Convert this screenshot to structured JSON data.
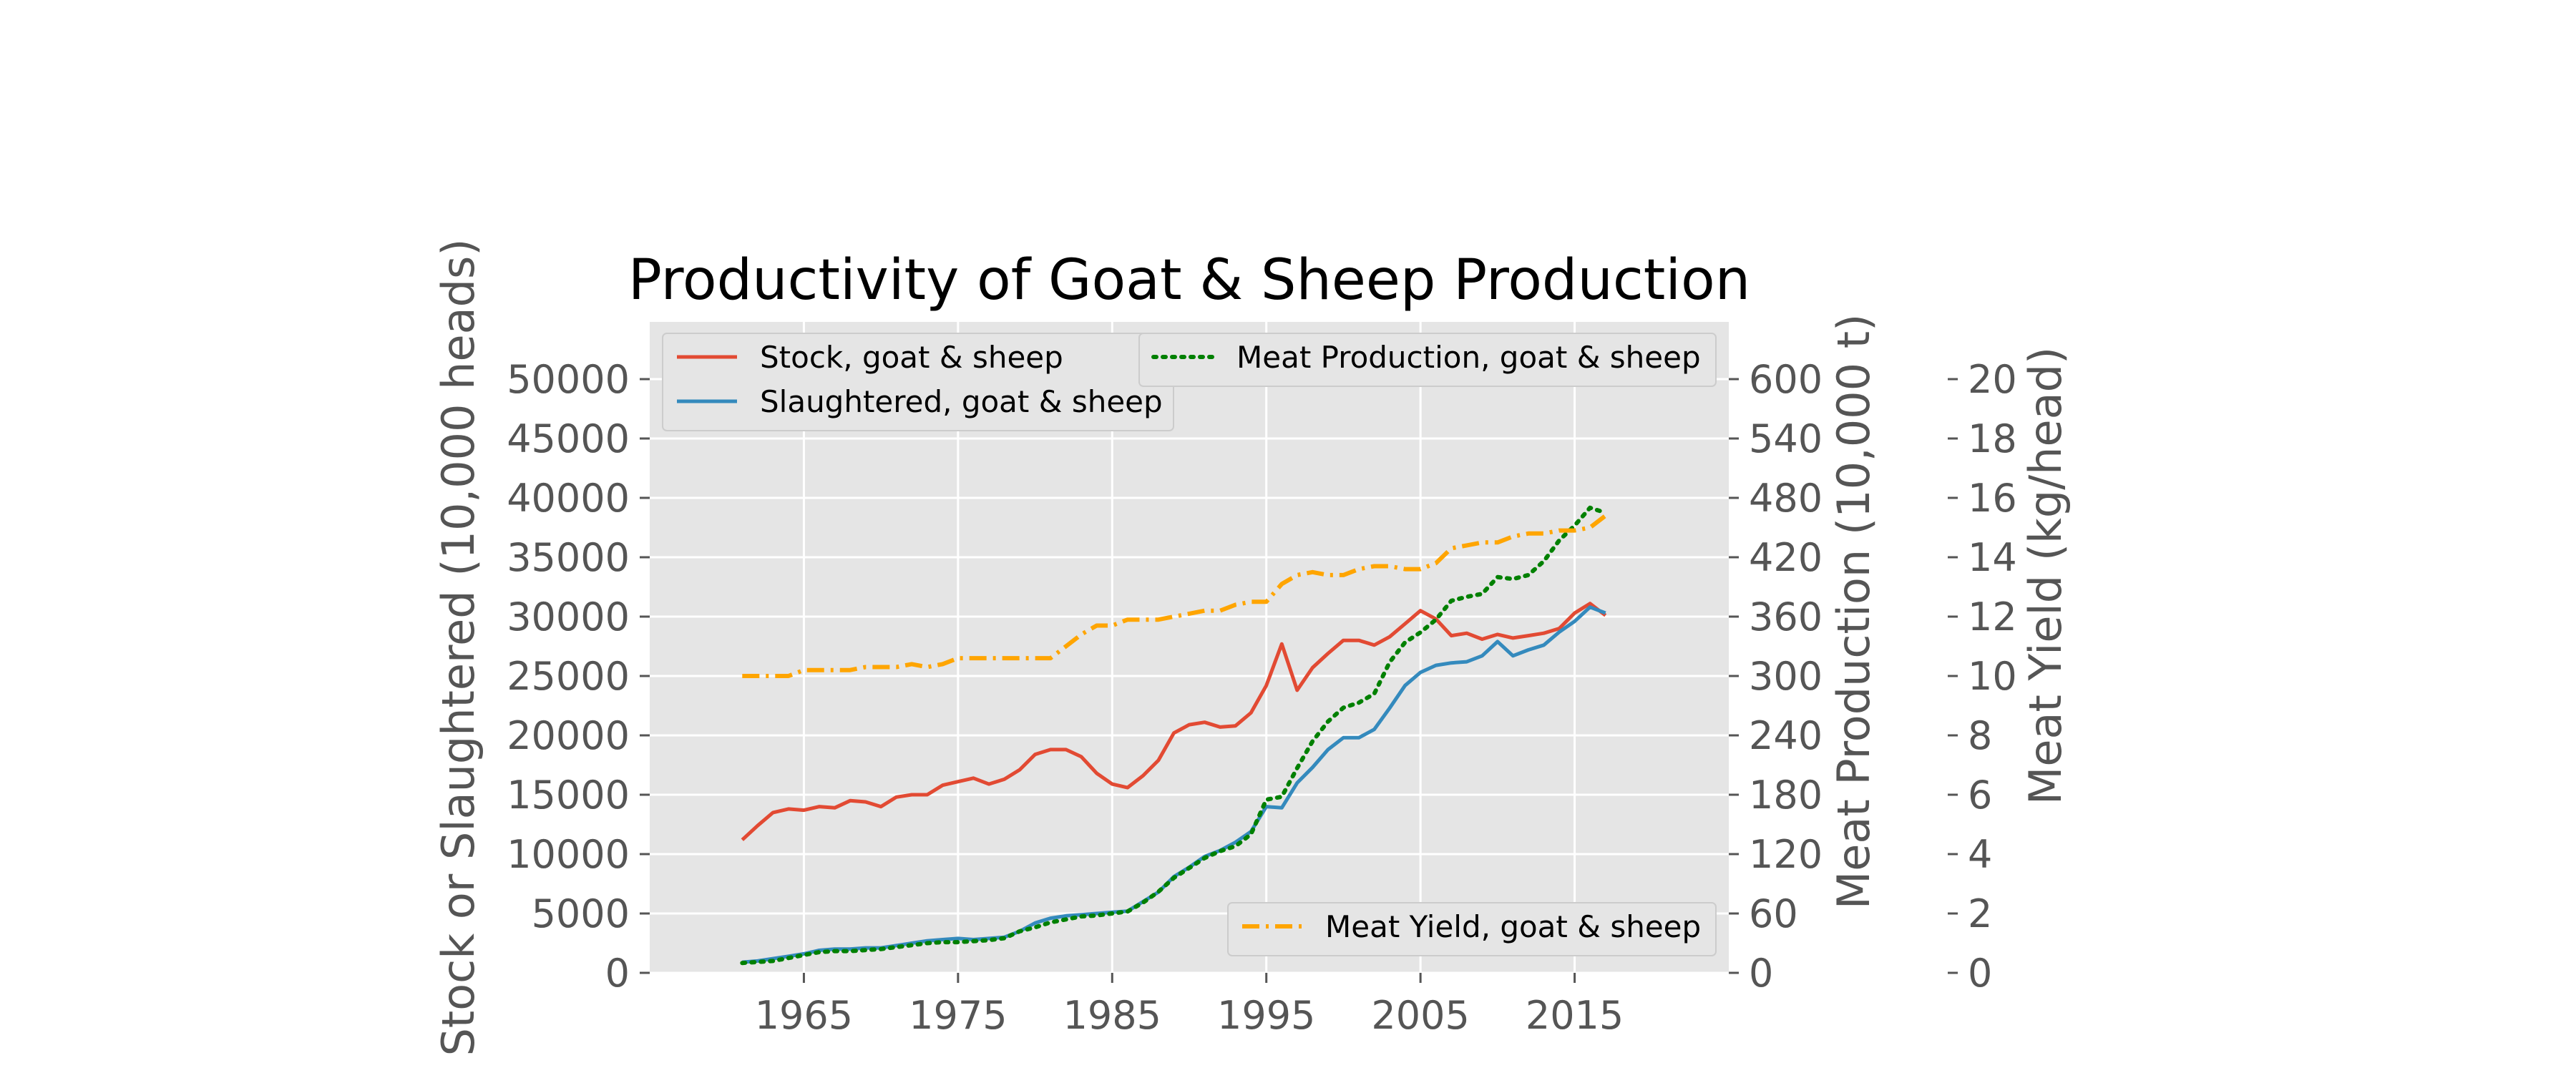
{
  "chart_data": {
    "type": "line",
    "title": "Productivity of Goat & Sheep Production",
    "x": [
      1961,
      1962,
      1963,
      1964,
      1965,
      1966,
      1967,
      1968,
      1969,
      1970,
      1971,
      1972,
      1973,
      1974,
      1975,
      1976,
      1977,
      1978,
      1979,
      1980,
      1981,
      1982,
      1983,
      1984,
      1985,
      1986,
      1987,
      1988,
      1989,
      1990,
      1991,
      1992,
      1993,
      1994,
      1995,
      1996,
      1997,
      1998,
      1999,
      2000,
      2001,
      2002,
      2003,
      2004,
      2005,
      2006,
      2007,
      2008,
      2009,
      2010,
      2011,
      2012,
      2013,
      2014,
      2015,
      2016,
      2017
    ],
    "xticks": [
      1965,
      1975,
      1985,
      1995,
      2005,
      2015
    ],
    "xlim": [
      1955,
      2025
    ],
    "axes": {
      "left": {
        "label": "Stock or Slaughtered (10,000 heads)",
        "ylim": [
          0,
          50000
        ],
        "ticks": [
          0,
          5000,
          10000,
          15000,
          20000,
          25000,
          30000,
          35000,
          40000,
          45000,
          50000
        ]
      },
      "right1": {
        "label": "Meat Production (10,000 t)",
        "ylim": [
          0,
          600
        ],
        "ticks": [
          0,
          60,
          120,
          180,
          240,
          300,
          360,
          420,
          480,
          540,
          600
        ]
      },
      "right2": {
        "label": "Meat Yield (kg/head)",
        "ylim": [
          0,
          20
        ],
        "ticks": [
          0,
          2,
          4,
          6,
          8,
          10,
          12,
          14,
          16,
          18,
          20
        ]
      }
    },
    "grid": true,
    "series": [
      {
        "name": "Stock, goat & sheep",
        "axis": "left",
        "color": "#e24a33",
        "style": "solid",
        "legend": "top-left",
        "values": [
          11200,
          12400,
          13500,
          13800,
          13700,
          14000,
          13900,
          14500,
          14400,
          14000,
          14800,
          15000,
          15000,
          15800,
          16100,
          16400,
          15900,
          16300,
          17100,
          18400,
          18800,
          18800,
          18200,
          16800,
          15900,
          15600,
          16600,
          17900,
          20200,
          20900,
          21100,
          20700,
          20800,
          21900,
          24200,
          27700,
          23800,
          25700,
          26900,
          28000,
          28000,
          27600,
          28300,
          29400,
          30500,
          29800,
          28400,
          28600,
          28100,
          28500,
          28200,
          28400,
          28600,
          29000,
          30300,
          31100,
          30100
        ]
      },
      {
        "name": "Slaughtered, goat & sheep",
        "axis": "left",
        "color": "#348abd",
        "style": "solid",
        "legend": "top-left",
        "values": [
          900,
          1000,
          1200,
          1400,
          1600,
          1900,
          2000,
          2000,
          2100,
          2100,
          2300,
          2500,
          2700,
          2800,
          2900,
          2800,
          2900,
          3000,
          3500,
          4200,
          4600,
          4800,
          4900,
          5000,
          5100,
          5200,
          6000,
          6800,
          8100,
          8900,
          9800,
          10300,
          11000,
          11900,
          14000,
          13900,
          16000,
          17300,
          18800,
          19800,
          19800,
          20500,
          22300,
          24200,
          25300,
          25900,
          26100,
          26200,
          26700,
          27900,
          26700,
          27200,
          27600,
          28700,
          29600,
          30800,
          30300
        ]
      },
      {
        "name": "Meat Production, goat & sheep",
        "axis": "right1",
        "color": "#008000",
        "style": "dotted",
        "legend": "top-right",
        "values": [
          10,
          11,
          12,
          15,
          18,
          21,
          22,
          22,
          23,
          24,
          26,
          28,
          30,
          31,
          31,
          32,
          33,
          35,
          42,
          46,
          51,
          54,
          57,
          58,
          60,
          62,
          71,
          82,
          96,
          106,
          116,
          123,
          128,
          140,
          175,
          178,
          207,
          234,
          254,
          268,
          273,
          282,
          314,
          334,
          344,
          357,
          376,
          380,
          383,
          400,
          398,
          402,
          416,
          437,
          452,
          470,
          465
        ]
      },
      {
        "name": "Meat Yield, goat & sheep",
        "axis": "right2",
        "color": "#ffa500",
        "style": "dashdot",
        "legend": "bottom-right",
        "values": [
          10.0,
          10.0,
          10.0,
          10.0,
          10.2,
          10.2,
          10.2,
          10.2,
          10.3,
          10.3,
          10.3,
          10.4,
          10.3,
          10.4,
          10.6,
          10.6,
          10.6,
          10.6,
          10.6,
          10.6,
          10.6,
          11.0,
          11.4,
          11.7,
          11.7,
          11.9,
          11.9,
          11.9,
          12.0,
          12.1,
          12.2,
          12.2,
          12.4,
          12.5,
          12.5,
          13.1,
          13.4,
          13.5,
          13.4,
          13.4,
          13.6,
          13.7,
          13.7,
          13.6,
          13.6,
          13.8,
          14.3,
          14.4,
          14.5,
          14.5,
          14.7,
          14.8,
          14.8,
          14.9,
          14.9,
          15.0,
          15.4
        ]
      }
    ]
  }
}
